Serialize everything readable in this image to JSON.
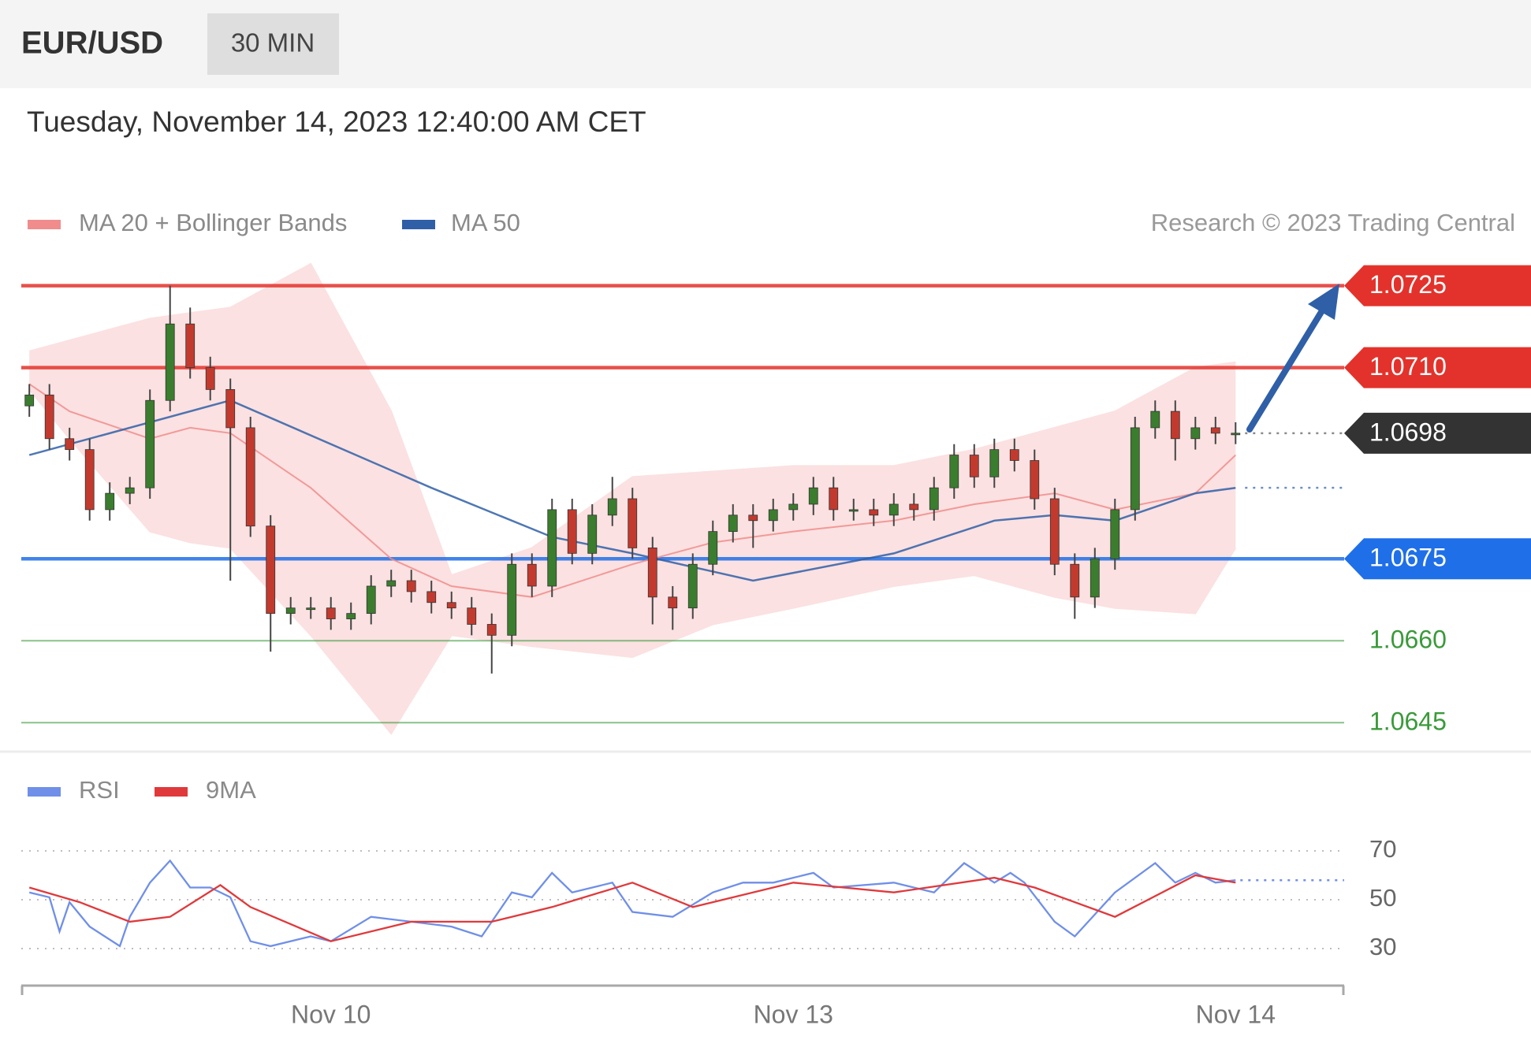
{
  "header": {
    "symbol": "EUR/USD",
    "timeframe": "30 MIN",
    "datetime": "Tuesday, November 14, 2023 12:40:00 AM CET"
  },
  "chart_data": [
    {
      "type": "candlestick",
      "annotation": "Research © 2023 Trading Central",
      "xlim": [
        -0.4,
        65.4
      ],
      "ylim": [
        1.0641,
        1.073
      ],
      "up_color": "#3b7d2e",
      "down_color": "#c23a2e",
      "x": [
        0,
        1,
        2,
        3,
        4,
        5,
        6,
        7,
        8,
        9,
        10,
        11,
        12,
        13,
        14,
        15,
        16,
        17,
        18,
        19,
        20,
        21,
        22,
        23,
        24,
        25,
        26,
        27,
        28,
        29,
        30,
        31,
        32,
        33,
        34,
        35,
        36,
        37,
        38,
        39,
        40,
        41,
        42,
        43,
        44,
        45,
        46,
        47,
        48,
        49,
        50,
        51,
        52,
        53,
        54,
        55,
        56,
        57,
        58,
        59,
        60
      ],
      "candles": {
        "open": [
          1.0703,
          1.0705,
          1.0697,
          1.0695,
          1.0684,
          1.0687,
          1.0688,
          1.0704,
          1.0718,
          1.071,
          1.0706,
          1.0699,
          1.0681,
          1.0665,
          1.0666,
          1.0666,
          1.0664,
          1.0665,
          1.067,
          1.0671,
          1.0669,
          1.0667,
          1.0666,
          1.0663,
          1.0661,
          1.0674,
          1.067,
          1.0684,
          1.0676,
          1.0683,
          1.0686,
          1.0677,
          1.0668,
          1.0666,
          1.0674,
          1.068,
          1.0683,
          1.0682,
          1.0684,
          1.0685,
          1.0688,
          1.0684,
          1.0684,
          1.0683,
          1.0685,
          1.0684,
          1.0688,
          1.0694,
          1.069,
          1.0695,
          1.0693,
          1.0686,
          1.0674,
          1.0668,
          1.0675,
          1.0684,
          1.0699,
          1.0702,
          1.0697,
          1.0699,
          1.0698
        ],
        "high": [
          1.0707,
          1.0707,
          1.0699,
          1.0697,
          1.0689,
          1.069,
          1.0706,
          1.0725,
          1.0721,
          1.0712,
          1.0708,
          1.0701,
          1.0683,
          1.0668,
          1.0668,
          1.0668,
          1.0667,
          1.0672,
          1.0673,
          1.0673,
          1.0671,
          1.0669,
          1.0668,
          1.0665,
          1.0676,
          1.0676,
          1.0686,
          1.0686,
          1.0685,
          1.069,
          1.0688,
          1.0679,
          1.067,
          1.0676,
          1.0682,
          1.0685,
          1.0685,
          1.0686,
          1.0687,
          1.069,
          1.069,
          1.0686,
          1.0686,
          1.0687,
          1.0687,
          1.069,
          1.0696,
          1.0696,
          1.0697,
          1.0697,
          1.0695,
          1.0688,
          1.0676,
          1.0677,
          1.0686,
          1.0701,
          1.0704,
          1.0704,
          1.0701,
          1.0701,
          1.07
        ],
        "low": [
          1.0701,
          1.0695,
          1.0693,
          1.0682,
          1.0682,
          1.0685,
          1.0686,
          1.0702,
          1.0708,
          1.0704,
          1.0671,
          1.0679,
          1.0658,
          1.0663,
          1.0664,
          1.0662,
          1.0662,
          1.0663,
          1.0668,
          1.0667,
          1.0665,
          1.0664,
          1.0661,
          1.0654,
          1.0659,
          1.0668,
          1.0668,
          1.0674,
          1.0674,
          1.0681,
          1.0675,
          1.0663,
          1.0662,
          1.0664,
          1.0672,
          1.0678,
          1.0677,
          1.068,
          1.0682,
          1.0683,
          1.0682,
          1.0682,
          1.0681,
          1.0681,
          1.0682,
          1.0682,
          1.0686,
          1.0688,
          1.0688,
          1.0691,
          1.0684,
          1.0672,
          1.0664,
          1.0666,
          1.0673,
          1.0682,
          1.0697,
          1.0693,
          1.0695,
          1.0696,
          1.0696
        ],
        "close": [
          1.0705,
          1.0697,
          1.0695,
          1.0684,
          1.0687,
          1.0688,
          1.0704,
          1.0718,
          1.071,
          1.0706,
          1.0699,
          1.0681,
          1.0665,
          1.0666,
          1.0666,
          1.0664,
          1.0665,
          1.067,
          1.0671,
          1.0669,
          1.0667,
          1.0666,
          1.0663,
          1.0661,
          1.0674,
          1.067,
          1.0684,
          1.0676,
          1.0683,
          1.0686,
          1.0677,
          1.0668,
          1.0666,
          1.0674,
          1.068,
          1.0683,
          1.0682,
          1.0684,
          1.0685,
          1.0688,
          1.0684,
          1.0684,
          1.0683,
          1.0685,
          1.0684,
          1.0688,
          1.0694,
          1.069,
          1.0695,
          1.0693,
          1.0686,
          1.0674,
          1.0668,
          1.0675,
          1.0684,
          1.0699,
          1.0702,
          1.0697,
          1.0699,
          1.0698,
          1.0698
        ]
      },
      "series": [
        {
          "name": "MA 20 + Bollinger Bands",
          "color": "#f08c8c",
          "band_color": "#fbe1e1",
          "x": [
            0,
            2,
            6,
            8,
            10,
            14,
            18,
            21,
            25,
            30,
            34,
            38,
            43,
            47,
            51,
            54,
            58,
            60
          ],
          "values": [
            1.0707,
            1.0702,
            1.0697,
            1.0699,
            1.0698,
            1.0688,
            1.0675,
            1.067,
            1.0668,
            1.0674,
            1.0678,
            1.068,
            1.0682,
            1.0685,
            1.0687,
            1.0684,
            1.0687,
            1.0694
          ],
          "upper": [
            1.0713,
            1.0715,
            1.0719,
            1.072,
            1.0721,
            1.0729,
            1.0702,
            1.0672,
            1.0677,
            1.069,
            1.0691,
            1.0692,
            1.0692,
            1.0695,
            1.0699,
            1.0702,
            1.071,
            1.0711
          ],
          "lower": [
            1.0706,
            1.0697,
            1.068,
            1.0678,
            1.0677,
            1.0661,
            1.0643,
            1.0661,
            1.0659,
            1.0657,
            1.0663,
            1.0666,
            1.067,
            1.0672,
            1.0668,
            1.0666,
            1.0665,
            1.0677
          ]
        },
        {
          "name": "MA 50",
          "color": "#2f5fa7",
          "extend": true,
          "x": [
            0,
            10,
            20,
            26,
            30,
            36,
            43,
            48,
            51,
            54,
            58,
            60
          ],
          "values": [
            1.0694,
            1.0704,
            1.0688,
            1.0679,
            1.0676,
            1.0671,
            1.0676,
            1.0682,
            1.0683,
            1.0682,
            1.0687,
            1.0688
          ]
        }
      ],
      "levels": [
        {
          "value": 1.0725,
          "label": "1.0725",
          "color": "#e3322b",
          "tag": true,
          "line": "solid"
        },
        {
          "value": 1.071,
          "label": "1.0710",
          "color": "#e3322b",
          "tag": true,
          "line": "solid"
        },
        {
          "value": 1.0698,
          "label": "1.0698",
          "color": "#333333",
          "tag": true,
          "line": "dotted"
        },
        {
          "value": 1.0675,
          "label": "1.0675",
          "color": "#1f6fe8",
          "tag": true,
          "line": "solid"
        },
        {
          "value": 1.066,
          "label": "1.0660",
          "color": "#3a9a3a",
          "tag": false,
          "line": "solid"
        },
        {
          "value": 1.0645,
          "label": "1.0645",
          "color": "#3a9a3a",
          "tag": false,
          "line": "solid"
        }
      ]
    },
    {
      "type": "line",
      "xlim": [
        -0.4,
        65.4
      ],
      "ylim": [
        20,
        80
      ],
      "yticks": [
        30,
        50,
        70
      ],
      "grid": true,
      "xticks": [
        {
          "value": 15,
          "label": "Nov 10"
        },
        {
          "value": 38,
          "label": "Nov 13"
        },
        {
          "value": 60,
          "label": "Nov 14"
        }
      ],
      "series": [
        {
          "name": "RSI",
          "color": "#6f8fe8",
          "extend": true,
          "x": [
            0,
            1,
            1.5,
            2,
            3,
            4.5,
            5,
            6,
            7,
            8,
            9,
            10,
            11,
            12,
            14,
            15,
            17,
            19,
            21,
            22.5,
            24,
            25,
            26,
            27,
            29,
            30,
            32,
            34,
            35.5,
            37,
            39,
            40,
            43,
            45,
            46.5,
            48,
            48.8,
            49.5,
            51,
            52,
            54,
            56,
            57,
            58,
            59,
            60
          ],
          "values": [
            53,
            51,
            37,
            49,
            39,
            31,
            43,
            57,
            66,
            55,
            55,
            51,
            33,
            31,
            35,
            33,
            43,
            41,
            39,
            35,
            53,
            51,
            61,
            53,
            57,
            45,
            43,
            53,
            57,
            57,
            61,
            55,
            57,
            53,
            65,
            57,
            61,
            57,
            41,
            35,
            53,
            65,
            57,
            61,
            57,
            58
          ]
        },
        {
          "name": "9MA",
          "color": "#e0393b",
          "x": [
            0,
            2.5,
            5,
            7,
            9.5,
            11,
            15,
            19,
            23,
            26,
            30,
            33,
            38,
            43,
            48,
            50,
            54,
            58,
            60
          ],
          "values": [
            55,
            49,
            41,
            43,
            56,
            47,
            33,
            41,
            41,
            47,
            57,
            47,
            57,
            53,
            59,
            55,
            43,
            60,
            57
          ]
        }
      ]
    }
  ]
}
